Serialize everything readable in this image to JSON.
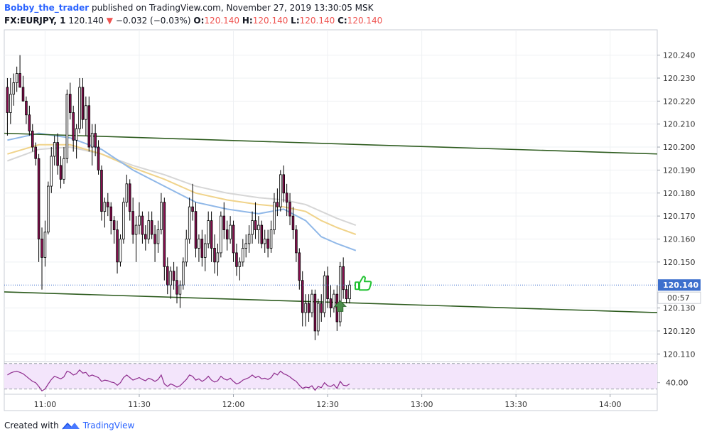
{
  "header": {
    "author": "Bobby_the_trader",
    "published": "published on TradingView.com, November 27, 2019 13:30:05 MSK",
    "symbol": "FX:EURJPY, 1",
    "last": "120.140",
    "change": "−0.032 (−0.03%)",
    "o_label": "O:",
    "o_value": "120.140",
    "h_label": "H:",
    "h_value": "120.140",
    "l_label": "L:",
    "l_value": "120.140",
    "c_label": "C:",
    "c_value": "120.140"
  },
  "footer": {
    "created_with": "Created with",
    "brand": "TradingView"
  },
  "colors": {
    "up": "#ffffff",
    "down": "#880e4f",
    "wick": "#000000",
    "ema_blue": "#90b8e8",
    "ema_yellow": "#f0d38a",
    "ema_gray": "#d6d6d6",
    "channel": "#2e5c1f",
    "rsi_line": "#8e2c8e",
    "rsi_fill": "#f3e5fb",
    "price_tag": "#3d6fcd",
    "arrow": "#4a8c4a",
    "thumb": "#22c232"
  },
  "price_tag": {
    "price": "120.140",
    "countdown": "00:57"
  },
  "chart_data": {
    "type": "candlestick",
    "symbol": "EURJPY",
    "interval_minutes": 1,
    "y_ticks": [
      "120.240",
      "120.230",
      "120.220",
      "120.210",
      "120.200",
      "120.190",
      "120.180",
      "120.170",
      "120.160",
      "120.150",
      "120.130",
      "120.120",
      "120.110"
    ],
    "ylim": [
      120.107,
      120.251
    ],
    "x_ticks": [
      "11:00",
      "11:30",
      "12:00",
      "12:30",
      "13:00",
      "13:30",
      "14:00"
    ],
    "x_range": [
      "10:47",
      "14:15"
    ],
    "rsi_tick": "40.00",
    "rsi_range": [
      24,
      72
    ],
    "candles_ohlc": [
      [
        120.226,
        120.23,
        120.205,
        120.215
      ],
      [
        120.215,
        120.23,
        120.21,
        120.223
      ],
      [
        120.223,
        120.232,
        120.218,
        120.228
      ],
      [
        120.228,
        120.235,
        120.224,
        120.232
      ],
      [
        120.232,
        120.24,
        120.228,
        120.226
      ],
      [
        120.226,
        120.231,
        120.22,
        120.22
      ],
      [
        120.22,
        120.222,
        120.21,
        120.214
      ],
      [
        120.214,
        120.218,
        120.205,
        120.207
      ],
      [
        120.207,
        120.21,
        120.198,
        120.2
      ],
      [
        120.2,
        120.202,
        120.192,
        120.195
      ],
      [
        120.195,
        120.197,
        120.15,
        120.16
      ],
      [
        120.16,
        120.165,
        120.138,
        120.152
      ],
      [
        120.152,
        120.168,
        120.148,
        120.163
      ],
      [
        120.163,
        120.185,
        120.162,
        120.183
      ],
      [
        120.183,
        120.2,
        120.18,
        120.196
      ],
      [
        120.196,
        120.205,
        120.192,
        120.202
      ],
      [
        120.202,
        120.206,
        120.188,
        120.192
      ],
      [
        120.192,
        120.196,
        120.182,
        120.186
      ],
      [
        120.186,
        120.2,
        120.184,
        120.195
      ],
      [
        120.195,
        120.225,
        120.193,
        120.223
      ],
      [
        120.223,
        120.228,
        120.212,
        120.215
      ],
      [
        120.215,
        120.218,
        120.198,
        120.203
      ],
      [
        120.203,
        120.21,
        120.195,
        120.208
      ],
      [
        120.208,
        120.23,
        120.206,
        120.226
      ],
      [
        120.226,
        120.23,
        120.208,
        120.212
      ],
      [
        120.212,
        120.222,
        120.205,
        120.218
      ],
      [
        120.218,
        120.222,
        120.198,
        120.2
      ],
      [
        120.2,
        120.21,
        120.192,
        120.206
      ],
      [
        120.206,
        120.21,
        120.196,
        120.2
      ],
      [
        120.2,
        120.203,
        120.188,
        120.19
      ],
      [
        120.19,
        120.192,
        120.168,
        120.172
      ],
      [
        120.172,
        120.178,
        120.165,
        120.176
      ],
      [
        120.176,
        120.18,
        120.17,
        120.174
      ],
      [
        120.174,
        120.176,
        120.162,
        120.168
      ],
      [
        120.168,
        120.17,
        120.158,
        120.164
      ],
      [
        120.164,
        120.168,
        120.145,
        120.15
      ],
      [
        120.15,
        120.162,
        120.148,
        120.16
      ],
      [
        120.16,
        120.178,
        120.158,
        120.176
      ],
      [
        120.176,
        120.188,
        120.174,
        120.184
      ],
      [
        120.184,
        120.186,
        120.168,
        120.172
      ],
      [
        120.172,
        120.178,
        120.158,
        120.162
      ],
      [
        120.162,
        120.17,
        120.15,
        120.166
      ],
      [
        120.166,
        120.176,
        120.162,
        120.17
      ],
      [
        120.17,
        120.172,
        120.158,
        120.162
      ],
      [
        120.162,
        120.166,
        120.155,
        120.16
      ],
      [
        120.16,
        120.172,
        120.158,
        120.168
      ],
      [
        120.168,
        120.172,
        120.16,
        120.162
      ],
      [
        120.162,
        120.166,
        120.15,
        120.158
      ],
      [
        120.158,
        120.168,
        120.154,
        120.164
      ],
      [
        120.164,
        120.18,
        120.162,
        120.176
      ],
      [
        120.176,
        120.178,
        120.142,
        120.148
      ],
      [
        120.148,
        120.152,
        120.136,
        120.14
      ],
      [
        120.14,
        120.148,
        120.134,
        120.146
      ],
      [
        120.146,
        120.15,
        120.138,
        120.142
      ],
      [
        120.142,
        120.148,
        120.132,
        120.136
      ],
      [
        120.136,
        120.142,
        120.13,
        120.14
      ],
      [
        120.14,
        120.152,
        120.138,
        120.15
      ],
      [
        120.15,
        120.164,
        120.148,
        120.16
      ],
      [
        120.16,
        120.178,
        120.158,
        120.174
      ],
      [
        120.174,
        120.184,
        120.168,
        120.172
      ],
      [
        120.172,
        120.176,
        120.152,
        120.156
      ],
      [
        120.156,
        120.162,
        120.15,
        120.16
      ],
      [
        120.16,
        120.164,
        120.148,
        120.152
      ],
      [
        120.152,
        120.162,
        120.146,
        120.158
      ],
      [
        120.158,
        120.172,
        120.156,
        120.168
      ],
      [
        120.168,
        120.172,
        120.15,
        120.156
      ],
      [
        120.156,
        120.162,
        120.145,
        120.15
      ],
      [
        120.15,
        120.158,
        120.144,
        120.154
      ],
      [
        120.154,
        120.172,
        120.152,
        120.17
      ],
      [
        120.17,
        120.176,
        120.16,
        120.164
      ],
      [
        120.164,
        120.168,
        120.155,
        120.16
      ],
      [
        120.16,
        120.17,
        120.158,
        120.166
      ],
      [
        120.166,
        120.168,
        120.15,
        120.154
      ],
      [
        120.154,
        120.158,
        120.144,
        120.148
      ],
      [
        120.148,
        120.152,
        120.142,
        120.15
      ],
      [
        120.15,
        120.16,
        120.148,
        120.156
      ],
      [
        120.156,
        120.162,
        120.152,
        120.158
      ],
      [
        120.158,
        120.166,
        120.154,
        120.162
      ],
      [
        120.162,
        120.172,
        120.158,
        120.168
      ],
      [
        120.168,
        120.176,
        120.16,
        120.164
      ],
      [
        120.164,
        120.17,
        120.158,
        120.166
      ],
      [
        120.166,
        120.168,
        120.156,
        120.158
      ],
      [
        120.158,
        120.164,
        120.154,
        120.16
      ],
      [
        120.16,
        120.164,
        120.152,
        120.156
      ],
      [
        120.156,
        120.168,
        120.154,
        120.164
      ],
      [
        120.164,
        120.18,
        120.162,
        120.176
      ],
      [
        120.176,
        120.182,
        120.17,
        120.174
      ],
      [
        120.174,
        120.19,
        120.172,
        120.188
      ],
      [
        120.188,
        120.192,
        120.176,
        120.18
      ],
      [
        120.18,
        120.184,
        120.17,
        120.176
      ],
      [
        120.176,
        120.18,
        120.166,
        120.17
      ],
      [
        120.17,
        120.174,
        120.16,
        120.164
      ],
      [
        120.164,
        120.166,
        120.15,
        120.154
      ],
      [
        120.154,
        120.156,
        120.138,
        120.142
      ],
      [
        120.142,
        120.146,
        120.122,
        120.128
      ],
      [
        120.128,
        120.136,
        120.122,
        120.132
      ],
      [
        120.132,
        120.136,
        120.124,
        120.128
      ],
      [
        120.128,
        120.138,
        120.126,
        120.136
      ],
      [
        120.136,
        120.138,
        120.116,
        120.12
      ],
      [
        120.12,
        120.134,
        120.118,
        120.132
      ],
      [
        120.132,
        120.136,
        120.124,
        120.128
      ],
      [
        120.128,
        120.146,
        120.126,
        120.144
      ],
      [
        120.144,
        120.148,
        120.13,
        120.134
      ],
      [
        120.134,
        120.14,
        120.126,
        120.13
      ],
      [
        120.13,
        120.138,
        120.128,
        120.136
      ],
      [
        120.136,
        120.14,
        120.12,
        120.124
      ],
      [
        120.124,
        120.15,
        120.122,
        120.148
      ],
      [
        120.148,
        120.152,
        120.134,
        120.138
      ],
      [
        120.138,
        120.14,
        120.132,
        120.134
      ],
      [
        120.134,
        120.142,
        120.132,
        120.14
      ]
    ],
    "ema_blue": [
      [
        0,
        120.203
      ],
      [
        10,
        120.206
      ],
      [
        20,
        120.204
      ],
      [
        30,
        120.199
      ],
      [
        40,
        120.19
      ],
      [
        50,
        120.183
      ],
      [
        60,
        120.176
      ],
      [
        70,
        120.173
      ],
      [
        80,
        120.171
      ],
      [
        88,
        120.173
      ],
      [
        95,
        120.168
      ],
      [
        100,
        120.161
      ],
      [
        105,
        120.158
      ],
      [
        111,
        120.155
      ]
    ],
    "ema_yellow": [
      [
        0,
        120.197
      ],
      [
        10,
        120.201
      ],
      [
        20,
        120.201
      ],
      [
        30,
        120.197
      ],
      [
        40,
        120.191
      ],
      [
        50,
        120.186
      ],
      [
        60,
        120.18
      ],
      [
        70,
        120.177
      ],
      [
        80,
        120.175
      ],
      [
        88,
        120.174
      ],
      [
        95,
        120.172
      ],
      [
        100,
        120.168
      ],
      [
        105,
        120.165
      ],
      [
        111,
        120.162
      ]
    ],
    "ema_gray": [
      [
        0,
        120.194
      ],
      [
        10,
        120.199
      ],
      [
        20,
        120.2
      ],
      [
        30,
        120.197
      ],
      [
        40,
        120.192
      ],
      [
        50,
        120.188
      ],
      [
        60,
        120.183
      ],
      [
        70,
        120.18
      ],
      [
        80,
        120.178
      ],
      [
        88,
        120.177
      ],
      [
        95,
        120.175
      ],
      [
        100,
        120.172
      ],
      [
        105,
        120.169
      ],
      [
        111,
        120.166
      ]
    ],
    "channel_upper": [
      [
        120.206,
        120.197
      ]
    ],
    "channel_lower": [
      [
        120.137,
        120.128
      ]
    ],
    "rsi": [
      52,
      55,
      57,
      58,
      56,
      54,
      50,
      46,
      42,
      40,
      34,
      27,
      30,
      38,
      45,
      50,
      48,
      46,
      49,
      58,
      56,
      52,
      54,
      60,
      55,
      56,
      50,
      52,
      50,
      48,
      42,
      44,
      43,
      41,
      40,
      36,
      40,
      48,
      52,
      48,
      44,
      46,
      48,
      45,
      43,
      47,
      45,
      42,
      45,
      52,
      38,
      34,
      38,
      36,
      33,
      35,
      40,
      45,
      52,
      50,
      44,
      46,
      42,
      45,
      50,
      44,
      41,
      43,
      50,
      46,
      44,
      47,
      42,
      38,
      40,
      44,
      46,
      48,
      52,
      48,
      50,
      46,
      47,
      45,
      48,
      55,
      52,
      58,
      54,
      52,
      49,
      45,
      42,
      36,
      31,
      33,
      32,
      35,
      28,
      34,
      32,
      40,
      35,
      34,
      37,
      31,
      42,
      36,
      35,
      38
    ]
  }
}
